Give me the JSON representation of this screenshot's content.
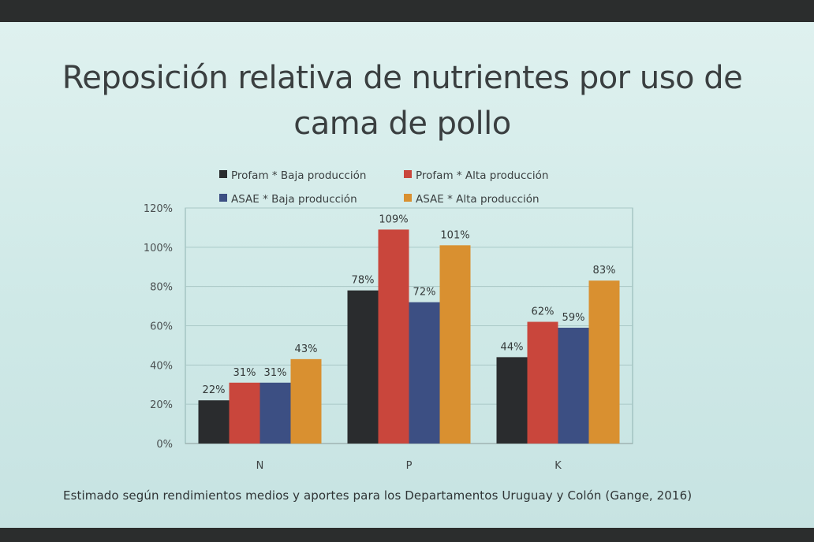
{
  "slide": {
    "title": "Reposición relativa de nutrientes por uso de cama de pollo",
    "footnote": "Estimado según rendimientos medios y aportes para los Departamentos Uruguay y Colón (Gange, 2016)"
  },
  "colors": {
    "Profam * Baja producción": "#2a2c2e",
    "Profam * Alta producción": "#c9463c",
    "ASAE * Baja producción": "#3c4f83",
    "ASAE * Alta producción": "#d99030"
  },
  "chart_data": {
    "type": "bar",
    "title": "",
    "xlabel": "",
    "ylabel": "",
    "categories": [
      "N",
      "P",
      "K"
    ],
    "ylim": [
      0,
      120
    ],
    "yticks": [
      "0%",
      "20%",
      "40%",
      "60%",
      "80%",
      "100%",
      "120%"
    ],
    "ytick_values": [
      0,
      20,
      40,
      60,
      80,
      100,
      120
    ],
    "value_suffix": "%",
    "grid": true,
    "legend_position": "top",
    "series": [
      {
        "name": "Profam * Baja producción",
        "values": [
          22,
          78,
          44
        ]
      },
      {
        "name": "Profam * Alta producción",
        "values": [
          31,
          109,
          62
        ]
      },
      {
        "name": "ASAE * Baja producción",
        "values": [
          31,
          72,
          59
        ]
      },
      {
        "name": "ASAE * Alta producción",
        "values": [
          43,
          101,
          83
        ]
      }
    ]
  }
}
